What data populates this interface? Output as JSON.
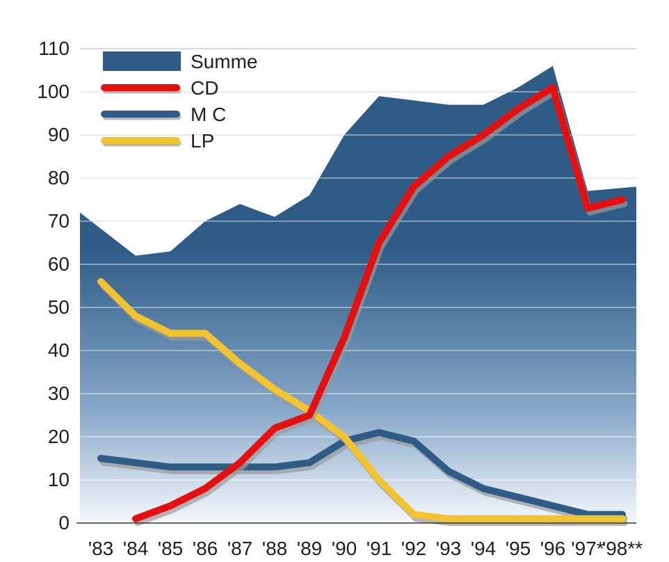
{
  "chart_data": {
    "type": "area",
    "x": [
      "'83",
      "'84",
      "'85",
      "'86",
      "'87",
      "'88",
      "'89",
      "'90",
      "'91",
      "'92",
      "'93",
      "'94",
      "'95",
      "'96",
      "'97*",
      "'98**"
    ],
    "series": [
      {
        "name": "Summe",
        "kind": "area",
        "color": "#2E5C86",
        "values": [
          72,
          62,
          63,
          70,
          74,
          71,
          76,
          90,
          99,
          98,
          97,
          97,
          101,
          106,
          77,
          78
        ]
      },
      {
        "name": "CD",
        "kind": "line",
        "color": "#E50F0F",
        "values": [
          null,
          1,
          4,
          8,
          14,
          22,
          25,
          43,
          65,
          78,
          85,
          90,
          96,
          101,
          73,
          75
        ]
      },
      {
        "name": "M C",
        "kind": "line",
        "color": "#2E5C86",
        "values": [
          15,
          14,
          13,
          13,
          13,
          13,
          14,
          19,
          21,
          19,
          12,
          8,
          6,
          4,
          2,
          2
        ]
      },
      {
        "name": "LP",
        "kind": "line",
        "color": "#F4C430",
        "values": [
          56,
          48,
          44,
          44,
          37,
          31,
          26,
          20,
          10,
          2,
          1,
          1,
          1,
          1,
          1,
          1
        ]
      }
    ],
    "ylim": [
      0,
      110
    ],
    "yticks": [
      "0",
      "10",
      "20",
      "30",
      "40",
      "50",
      "60",
      "70",
      "80",
      "90",
      "100",
      "110"
    ],
    "xlabel": "",
    "ylabel": "",
    "title": "",
    "grid": true,
    "legend_position": "top-left"
  }
}
